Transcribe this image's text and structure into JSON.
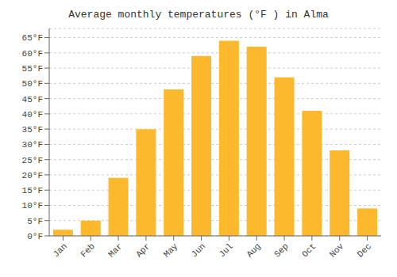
{
  "chart_data": {
    "type": "bar",
    "title": "Average monthly temperatures (°F ) in Alma",
    "categories": [
      "Jan",
      "Feb",
      "Mar",
      "Apr",
      "May",
      "Jun",
      "Jul",
      "Aug",
      "Sep",
      "Oct",
      "Nov",
      "Dec"
    ],
    "values": [
      2,
      5,
      19,
      35,
      48,
      59,
      64,
      62,
      52,
      41,
      28,
      9
    ],
    "color": "#FDB92E",
    "ylim": [
      0,
      68
    ],
    "yticks": [
      {
        "value": 0,
        "label": "0°F"
      },
      {
        "value": 5,
        "label": "5°F"
      },
      {
        "value": 10,
        "label": "10°F"
      },
      {
        "value": 15,
        "label": "15°F"
      },
      {
        "value": 20,
        "label": "20°F"
      },
      {
        "value": 25,
        "label": "25°F"
      },
      {
        "value": 30,
        "label": "30°F"
      },
      {
        "value": 35,
        "label": "35°F"
      },
      {
        "value": 40,
        "label": "40°F"
      },
      {
        "value": 45,
        "label": "45°F"
      },
      {
        "value": 50,
        "label": "50°F"
      },
      {
        "value": 55,
        "label": "55°F"
      },
      {
        "value": 60,
        "label": "60°F"
      },
      {
        "value": 65,
        "label": "65°F"
      }
    ],
    "grid": true
  }
}
